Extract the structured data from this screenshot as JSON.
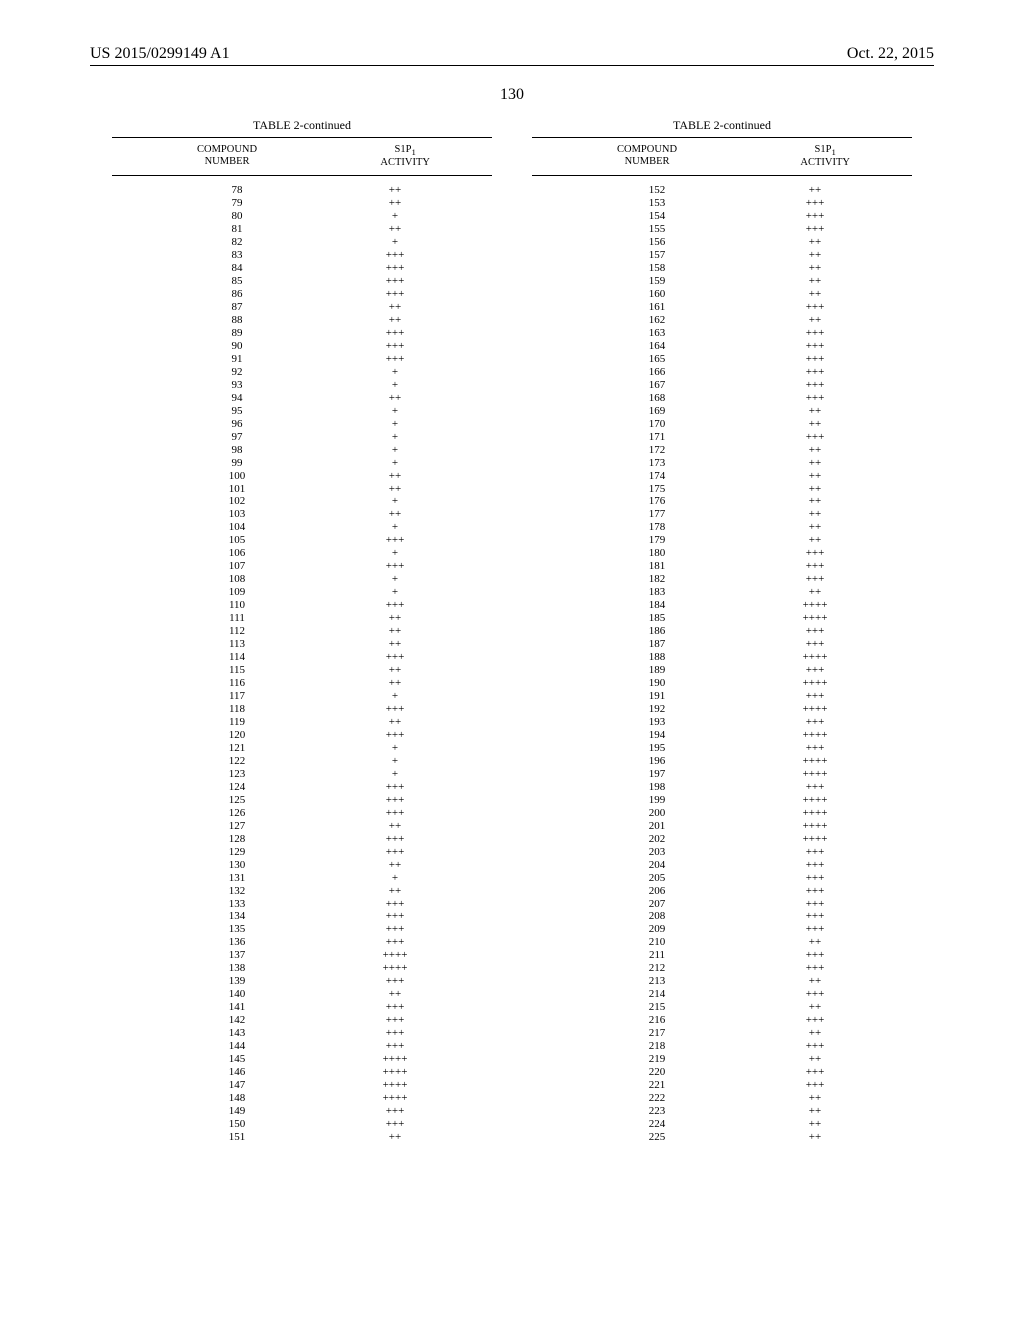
{
  "header": {
    "pub_number": "US 2015/0299149 A1",
    "pub_date": "Oct. 22, 2015"
  },
  "page_number": "130",
  "tables": {
    "caption": "TABLE 2-continued",
    "col_headers": {
      "left_line1": "COMPOUND",
      "left_line2": "NUMBER",
      "right_line1": "S1P",
      "right_sub": "1",
      "right_line2": "ACTIVITY"
    },
    "left_rows": [
      {
        "n": "78",
        "a": "++"
      },
      {
        "n": "79",
        "a": "++"
      },
      {
        "n": "80",
        "a": "+"
      },
      {
        "n": "81",
        "a": "++"
      },
      {
        "n": "82",
        "a": "+"
      },
      {
        "n": "83",
        "a": "+++"
      },
      {
        "n": "84",
        "a": "+++"
      },
      {
        "n": "85",
        "a": "+++"
      },
      {
        "n": "86",
        "a": "+++"
      },
      {
        "n": "87",
        "a": "++"
      },
      {
        "n": "88",
        "a": "++"
      },
      {
        "n": "89",
        "a": "+++"
      },
      {
        "n": "90",
        "a": "+++"
      },
      {
        "n": "91",
        "a": "+++"
      },
      {
        "n": "92",
        "a": "+"
      },
      {
        "n": "93",
        "a": "+"
      },
      {
        "n": "94",
        "a": "++"
      },
      {
        "n": "95",
        "a": "+"
      },
      {
        "n": "96",
        "a": "+"
      },
      {
        "n": "97",
        "a": "+"
      },
      {
        "n": "98",
        "a": "+"
      },
      {
        "n": "99",
        "a": "+"
      },
      {
        "n": "100",
        "a": "++"
      },
      {
        "n": "101",
        "a": "++"
      },
      {
        "n": "102",
        "a": "+"
      },
      {
        "n": "103",
        "a": "++"
      },
      {
        "n": "104",
        "a": "+"
      },
      {
        "n": "105",
        "a": "+++"
      },
      {
        "n": "106",
        "a": "+"
      },
      {
        "n": "107",
        "a": "+++"
      },
      {
        "n": "108",
        "a": "+"
      },
      {
        "n": "109",
        "a": "+"
      },
      {
        "n": "110",
        "a": "+++"
      },
      {
        "n": "111",
        "a": "++"
      },
      {
        "n": "112",
        "a": "++"
      },
      {
        "n": "113",
        "a": "++"
      },
      {
        "n": "114",
        "a": "+++"
      },
      {
        "n": "115",
        "a": "++"
      },
      {
        "n": "116",
        "a": "++"
      },
      {
        "n": "117",
        "a": "+"
      },
      {
        "n": "118",
        "a": "+++"
      },
      {
        "n": "119",
        "a": "++"
      },
      {
        "n": "120",
        "a": "+++"
      },
      {
        "n": "121",
        "a": "+"
      },
      {
        "n": "122",
        "a": "+"
      },
      {
        "n": "123",
        "a": "+"
      },
      {
        "n": "124",
        "a": "+++"
      },
      {
        "n": "125",
        "a": "+++"
      },
      {
        "n": "126",
        "a": "+++"
      },
      {
        "n": "127",
        "a": "++"
      },
      {
        "n": "128",
        "a": "+++"
      },
      {
        "n": "129",
        "a": "+++"
      },
      {
        "n": "130",
        "a": "++"
      },
      {
        "n": "131",
        "a": "+"
      },
      {
        "n": "132",
        "a": "++"
      },
      {
        "n": "133",
        "a": "+++"
      },
      {
        "n": "134",
        "a": "+++"
      },
      {
        "n": "135",
        "a": "+++"
      },
      {
        "n": "136",
        "a": "+++"
      },
      {
        "n": "137",
        "a": "++++"
      },
      {
        "n": "138",
        "a": "++++"
      },
      {
        "n": "139",
        "a": "+++"
      },
      {
        "n": "140",
        "a": "++"
      },
      {
        "n": "141",
        "a": "+++"
      },
      {
        "n": "142",
        "a": "+++"
      },
      {
        "n": "143",
        "a": "+++"
      },
      {
        "n": "144",
        "a": "+++"
      },
      {
        "n": "145",
        "a": "++++"
      },
      {
        "n": "146",
        "a": "++++"
      },
      {
        "n": "147",
        "a": "++++"
      },
      {
        "n": "148",
        "a": "++++"
      },
      {
        "n": "149",
        "a": "+++"
      },
      {
        "n": "150",
        "a": "+++"
      },
      {
        "n": "151",
        "a": "++"
      }
    ],
    "right_rows": [
      {
        "n": "152",
        "a": "++"
      },
      {
        "n": "153",
        "a": "+++"
      },
      {
        "n": "154",
        "a": "+++"
      },
      {
        "n": "155",
        "a": "+++"
      },
      {
        "n": "156",
        "a": "++"
      },
      {
        "n": "157",
        "a": "++"
      },
      {
        "n": "158",
        "a": "++"
      },
      {
        "n": "159",
        "a": "++"
      },
      {
        "n": "160",
        "a": "++"
      },
      {
        "n": "161",
        "a": "+++"
      },
      {
        "n": "162",
        "a": "++"
      },
      {
        "n": "163",
        "a": "+++"
      },
      {
        "n": "164",
        "a": "+++"
      },
      {
        "n": "165",
        "a": "+++"
      },
      {
        "n": "166",
        "a": "+++"
      },
      {
        "n": "167",
        "a": "+++"
      },
      {
        "n": "168",
        "a": "+++"
      },
      {
        "n": "169",
        "a": "++"
      },
      {
        "n": "170",
        "a": "++"
      },
      {
        "n": "171",
        "a": "+++"
      },
      {
        "n": "172",
        "a": "++"
      },
      {
        "n": "173",
        "a": "++"
      },
      {
        "n": "174",
        "a": "++"
      },
      {
        "n": "175",
        "a": "++"
      },
      {
        "n": "176",
        "a": "++"
      },
      {
        "n": "177",
        "a": "++"
      },
      {
        "n": "178",
        "a": "++"
      },
      {
        "n": "179",
        "a": "++"
      },
      {
        "n": "180",
        "a": "+++"
      },
      {
        "n": "181",
        "a": "+++"
      },
      {
        "n": "182",
        "a": "+++"
      },
      {
        "n": "183",
        "a": "++"
      },
      {
        "n": "184",
        "a": "++++"
      },
      {
        "n": "185",
        "a": "++++"
      },
      {
        "n": "186",
        "a": "+++"
      },
      {
        "n": "187",
        "a": "+++"
      },
      {
        "n": "188",
        "a": "++++"
      },
      {
        "n": "189",
        "a": "+++"
      },
      {
        "n": "190",
        "a": "++++"
      },
      {
        "n": "191",
        "a": "+++"
      },
      {
        "n": "192",
        "a": "++++"
      },
      {
        "n": "193",
        "a": "+++"
      },
      {
        "n": "194",
        "a": "++++"
      },
      {
        "n": "195",
        "a": "+++"
      },
      {
        "n": "196",
        "a": "++++"
      },
      {
        "n": "197",
        "a": "++++"
      },
      {
        "n": "198",
        "a": "+++"
      },
      {
        "n": "199",
        "a": "++++"
      },
      {
        "n": "200",
        "a": "++++"
      },
      {
        "n": "201",
        "a": "++++"
      },
      {
        "n": "202",
        "a": "++++"
      },
      {
        "n": "203",
        "a": "+++"
      },
      {
        "n": "204",
        "a": "+++"
      },
      {
        "n": "205",
        "a": "+++"
      },
      {
        "n": "206",
        "a": "+++"
      },
      {
        "n": "207",
        "a": "+++"
      },
      {
        "n": "208",
        "a": "+++"
      },
      {
        "n": "209",
        "a": "+++"
      },
      {
        "n": "210",
        "a": "++"
      },
      {
        "n": "211",
        "a": "+++"
      },
      {
        "n": "212",
        "a": "+++"
      },
      {
        "n": "213",
        "a": "++"
      },
      {
        "n": "214",
        "a": "+++"
      },
      {
        "n": "215",
        "a": "++"
      },
      {
        "n": "216",
        "a": "+++"
      },
      {
        "n": "217",
        "a": "++"
      },
      {
        "n": "218",
        "a": "+++"
      },
      {
        "n": "219",
        "a": "++"
      },
      {
        "n": "220",
        "a": "+++"
      },
      {
        "n": "221",
        "a": "+++"
      },
      {
        "n": "222",
        "a": "++"
      },
      {
        "n": "223",
        "a": "++"
      },
      {
        "n": "224",
        "a": "++"
      },
      {
        "n": "225",
        "a": "++"
      }
    ]
  },
  "styling": {
    "background_color": "#ffffff",
    "text_color": "#000000",
    "font_family": "Times New Roman",
    "header_fontsize": 16,
    "pagenum_fontsize": 16,
    "caption_fontsize": 12,
    "th_fontsize": 10.5,
    "cell_fontsize": 11,
    "rule_color": "#000000"
  }
}
